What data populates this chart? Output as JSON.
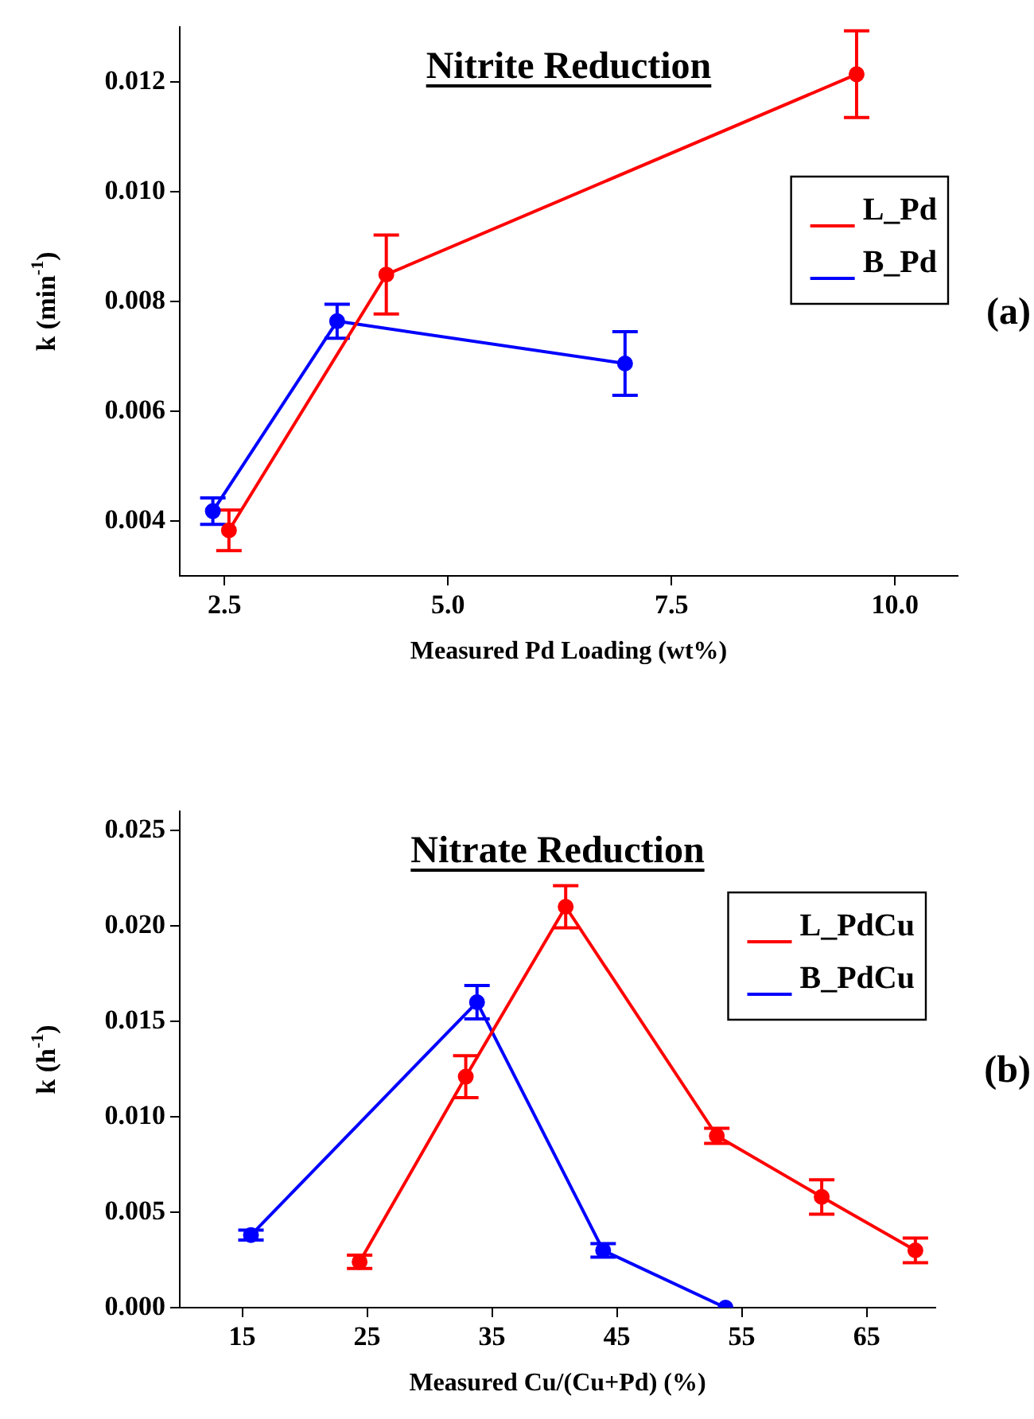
{
  "chart_data": [
    {
      "type": "line",
      "title": "Nitrite Reduction",
      "xlabel": "Measured Pd Loading (wt%)",
      "ylabel": "k (min$^{-1}$)",
      "annotations": [
        "(a)"
      ],
      "legend": "top right",
      "marker": "circle",
      "line_style": "solid",
      "grid": false,
      "xlim": [
        2.0,
        10.7
      ],
      "xticks": [
        {
          "value": 2.5,
          "label": "2.5"
        },
        {
          "value": 5,
          "label": "5.0"
        },
        {
          "value": 7.5,
          "label": "7.5"
        },
        {
          "value": 10,
          "label": "10.0"
        }
      ],
      "ylim": [
        0.003,
        0.013
      ],
      "yticks": [
        {
          "value": 0.004,
          "label": "0.004"
        },
        {
          "value": 0.006,
          "label": "0.006"
        },
        {
          "value": 0.008,
          "label": "0.008"
        },
        {
          "value": 0.01,
          "label": "0.010"
        },
        {
          "value": 0.012,
          "label": "0.012"
        }
      ],
      "series": [
        {
          "name": "L_Pd",
          "color": "#ff0000",
          "x": [
            2.55,
            4.31,
            9.57
          ],
          "values": [
            0.00383,
            0.00849,
            0.01214
          ],
          "errors": [
            0.00037,
            0.00072,
            0.00079
          ]
        },
        {
          "name": "B_Pd",
          "color": "#0000ff",
          "x": [
            2.37,
            3.76,
            6.98
          ],
          "values": [
            0.00418,
            0.00764,
            0.00687
          ],
          "errors": [
            0.00024,
            0.00031,
            0.00058
          ]
        }
      ]
    },
    {
      "type": "line",
      "title": "Nitrate Reduction",
      "xlabel": "Measured Cu/(Cu+Pd) (%)",
      "ylabel": "k (h$^{-1}$)",
      "annotations": [
        "(b)"
      ],
      "legend": "top right",
      "marker": "circle",
      "line_style": "solid",
      "grid": false,
      "xlim": [
        10,
        70.5
      ],
      "xticks": [
        15,
        25,
        35,
        45,
        55,
        65
      ],
      "ylim": [
        0,
        0.026
      ],
      "yticks": [
        {
          "value": 0,
          "label": "0.000"
        },
        {
          "value": 0.005,
          "label": "0.005"
        },
        {
          "value": 0.01,
          "label": "0.010"
        },
        {
          "value": 0.015,
          "label": "0.015"
        },
        {
          "value": 0.02,
          "label": "0.020"
        },
        {
          "value": 0.025,
          "label": "0.025"
        }
      ],
      "series": [
        {
          "name": "L_PdCu",
          "color": "#ff0000",
          "x": [
            24.4,
            32.9,
            40.9,
            53.0,
            61.4,
            68.9
          ],
          "values": [
            0.0024,
            0.0121,
            0.021,
            0.009,
            0.0058,
            0.003
          ],
          "errors": [
            0.00035,
            0.0011,
            0.0011,
            0.0004,
            0.0009,
            0.00065
          ]
        },
        {
          "name": "B_PdCu",
          "color": "#0000ff",
          "x": [
            15.7,
            33.8,
            43.9,
            53.7
          ],
          "values": [
            0.0038,
            0.016,
            0.003,
            0.0
          ],
          "errors": [
            0.00026,
            0.00088,
            0.00035,
            null
          ]
        }
      ]
    }
  ]
}
